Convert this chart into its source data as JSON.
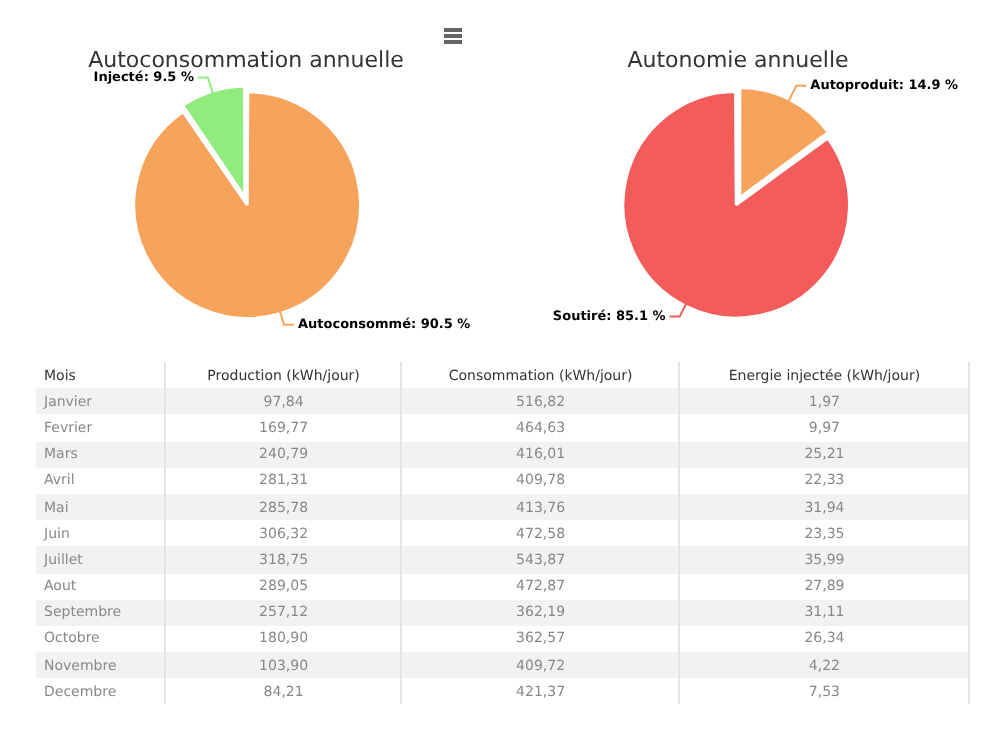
{
  "chart_data": [
    {
      "type": "pie",
      "title": "Autoconsommation annuelle",
      "categories": [
        "Autoconsommé",
        "Injecté"
      ],
      "values": [
        90.5,
        9.5
      ],
      "colors": [
        "#f7a35c",
        "#90ed7d"
      ],
      "value_labels": [
        "90.5 %",
        "9.5 %"
      ]
    },
    {
      "type": "pie",
      "title": "Autonomie annuelle",
      "categories": [
        "Autoproduit",
        "Soutiré"
      ],
      "values": [
        14.9,
        85.1
      ],
      "colors": [
        "#f7a35c",
        "#f45b5b"
      ],
      "value_labels": [
        "14.9 %",
        "85.1 %"
      ]
    },
    {
      "type": "other",
      "xlabel": "Mois",
      "categories": [
        "Janvier",
        "Fevrier",
        "Mars",
        "Avril",
        "Mai",
        "Juin",
        "Juillet",
        "Aout",
        "Septembre",
        "Octobre",
        "Novembre",
        "Decembre"
      ],
      "series": [
        {
          "name": "Production (kWh/jour)",
          "values": [
            97.84,
            169.77,
            240.79,
            281.31,
            285.78,
            306.32,
            318.75,
            289.05,
            257.12,
            180.9,
            103.9,
            84.21
          ],
          "value_labels": [
            "97,84",
            "169,77",
            "240,79",
            "281,31",
            "285,78",
            "306,32",
            "318,75",
            "289,05",
            "257,12",
            "180,90",
            "103,90",
            "84,21"
          ]
        },
        {
          "name": "Consommation (kWh/jour)",
          "values": [
            516.82,
            464.63,
            416.01,
            409.78,
            413.76,
            472.58,
            543.87,
            472.87,
            362.19,
            362.57,
            409.72,
            421.37
          ],
          "value_labels": [
            "516,82",
            "464,63",
            "416,01",
            "409,78",
            "413,76",
            "472,58",
            "543,87",
            "472,87",
            "362,19",
            "362,57",
            "409,72",
            "421,37"
          ]
        },
        {
          "name": "Energie injectée (kWh/jour)",
          "values": [
            1.97,
            9.97,
            25.21,
            22.33,
            31.94,
            23.35,
            35.99,
            27.89,
            31.11,
            26.34,
            4.22,
            7.53
          ],
          "value_labels": [
            "1,97",
            "9,97",
            "25,21",
            "22,33",
            "31,94",
            "23,35",
            "35,99",
            "27,89",
            "31,11",
            "26,34",
            "4,22",
            "7,53"
          ]
        }
      ]
    }
  ]
}
